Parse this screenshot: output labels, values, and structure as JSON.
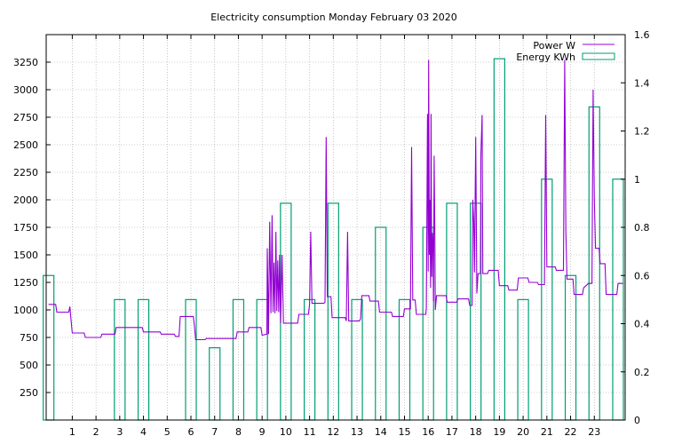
{
  "chart_data": {
    "type": "line",
    "title": "Electricity consumption Monday February 03 2020",
    "x_ticks": [
      "1",
      "2",
      "3",
      "4",
      "5",
      "6",
      "7",
      "8",
      "9",
      "10",
      "11",
      "12",
      "13",
      "14",
      "15",
      "16",
      "17",
      "18",
      "19",
      "20",
      "21",
      "22",
      "23"
    ],
    "xlim": [
      -0.1,
      24.3
    ],
    "y_left_ticks": [
      "250",
      "500",
      "750",
      "1000",
      "1250",
      "1500",
      "1750",
      "2000",
      "2250",
      "2500",
      "2750",
      "3000",
      "3250"
    ],
    "ylim_left": [
      0,
      3500
    ],
    "y_right_ticks": [
      "0",
      "0.2",
      "0.4",
      "0.6",
      "0.8",
      "1",
      "1.2",
      "1.4",
      "1.6"
    ],
    "ylim_right": [
      0,
      1.6
    ],
    "grid": true,
    "legend_position": "top-right",
    "colors": {
      "power": "#9400d3",
      "energy": "#009e73"
    },
    "series": [
      {
        "name": "Power W",
        "kind": "line",
        "points": [
          [
            0,
            1050
          ],
          [
            0.3,
            1050
          ],
          [
            0.35,
            980
          ],
          [
            0.85,
            980
          ],
          [
            0.9,
            1030
          ],
          [
            0.95,
            900
          ],
          [
            1.0,
            790
          ],
          [
            1.5,
            790
          ],
          [
            1.55,
            750
          ],
          [
            2.2,
            750
          ],
          [
            2.25,
            780
          ],
          [
            2.8,
            780
          ],
          [
            2.85,
            840
          ],
          [
            3.95,
            840
          ],
          [
            4.0,
            800
          ],
          [
            4.7,
            800
          ],
          [
            4.75,
            780
          ],
          [
            5.3,
            780
          ],
          [
            5.35,
            760
          ],
          [
            5.5,
            760
          ],
          [
            5.55,
            940
          ],
          [
            6.1,
            940
          ],
          [
            6.15,
            850
          ],
          [
            6.2,
            730
          ],
          [
            6.6,
            730
          ],
          [
            6.65,
            740
          ],
          [
            7.9,
            740
          ],
          [
            7.95,
            800
          ],
          [
            8.4,
            800
          ],
          [
            8.45,
            840
          ],
          [
            8.95,
            840
          ],
          [
            9.0,
            770
          ],
          [
            9.2,
            780
          ],
          [
            9.22,
            1560
          ],
          [
            9.27,
            780
          ],
          [
            9.32,
            1800
          ],
          [
            9.37,
            970
          ],
          [
            9.42,
            1860
          ],
          [
            9.46,
            980
          ],
          [
            9.5,
            1430
          ],
          [
            9.54,
            970
          ],
          [
            9.58,
            1710
          ],
          [
            9.62,
            990
          ],
          [
            9.66,
            1450
          ],
          [
            9.7,
            980
          ],
          [
            9.74,
            1500
          ],
          [
            9.78,
            880
          ],
          [
            9.84,
            1500
          ],
          [
            9.9,
            880
          ],
          [
            10.0,
            880
          ],
          [
            10.5,
            880
          ],
          [
            10.55,
            960
          ],
          [
            10.95,
            960
          ],
          [
            11.0,
            1050
          ],
          [
            11.05,
            1710
          ],
          [
            11.1,
            1060
          ],
          [
            11.6,
            1060
          ],
          [
            11.65,
            1070
          ],
          [
            11.7,
            2570
          ],
          [
            11.75,
            1120
          ],
          [
            11.9,
            1120
          ],
          [
            11.95,
            930
          ],
          [
            12.5,
            930
          ],
          [
            12.55,
            900
          ],
          [
            12.6,
            1710
          ],
          [
            12.65,
            900
          ],
          [
            13.1,
            900
          ],
          [
            13.15,
            920
          ],
          [
            13.2,
            1130
          ],
          [
            13.5,
            1130
          ],
          [
            13.55,
            1080
          ],
          [
            13.9,
            1080
          ],
          [
            13.95,
            980
          ],
          [
            14.45,
            980
          ],
          [
            14.5,
            940
          ],
          [
            14.95,
            940
          ],
          [
            15.0,
            1010
          ],
          [
            15.25,
            1010
          ],
          [
            15.3,
            2480
          ],
          [
            15.35,
            1090
          ],
          [
            15.45,
            1090
          ],
          [
            15.5,
            960
          ],
          [
            15.9,
            960
          ],
          [
            15.92,
            1020
          ],
          [
            15.97,
            2780
          ],
          [
            16.0,
            1350
          ],
          [
            16.02,
            3270
          ],
          [
            16.05,
            1500
          ],
          [
            16.07,
            2000
          ],
          [
            16.1,
            1200
          ],
          [
            16.12,
            2780
          ],
          [
            16.15,
            1300
          ],
          [
            16.17,
            1700
          ],
          [
            16.2,
            1600
          ],
          [
            16.22,
            1080
          ],
          [
            16.25,
            2400
          ],
          [
            16.28,
            1640
          ],
          [
            16.3,
            1000
          ],
          [
            16.35,
            1130
          ],
          [
            16.75,
            1130
          ],
          [
            16.8,
            1070
          ],
          [
            17.2,
            1070
          ],
          [
            17.25,
            1100
          ],
          [
            17.7,
            1100
          ],
          [
            17.75,
            1040
          ],
          [
            17.85,
            1040
          ],
          [
            17.88,
            2000
          ],
          [
            17.92,
            1800
          ],
          [
            17.95,
            1340
          ],
          [
            18.0,
            2570
          ],
          [
            18.05,
            1150
          ],
          [
            18.1,
            1330
          ],
          [
            18.2,
            1330
          ],
          [
            18.22,
            2400
          ],
          [
            18.27,
            2770
          ],
          [
            18.3,
            1330
          ],
          [
            18.5,
            1330
          ],
          [
            18.55,
            1360
          ],
          [
            18.95,
            1360
          ],
          [
            19.0,
            1220
          ],
          [
            19.35,
            1220
          ],
          [
            19.4,
            1180
          ],
          [
            19.75,
            1180
          ],
          [
            19.8,
            1290
          ],
          [
            20.2,
            1290
          ],
          [
            20.25,
            1250
          ],
          [
            20.6,
            1250
          ],
          [
            20.65,
            1230
          ],
          [
            20.9,
            1230
          ],
          [
            20.95,
            2770
          ],
          [
            21.0,
            1390
          ],
          [
            21.35,
            1390
          ],
          [
            21.4,
            1360
          ],
          [
            21.7,
            1360
          ],
          [
            21.75,
            3270
          ],
          [
            21.8,
            1720
          ],
          [
            21.85,
            1280
          ],
          [
            22.1,
            1280
          ],
          [
            22.15,
            1140
          ],
          [
            22.5,
            1140
          ],
          [
            22.55,
            1200
          ],
          [
            22.75,
            1240
          ],
          [
            22.9,
            1240
          ],
          [
            22.95,
            3000
          ],
          [
            23.0,
            2000
          ],
          [
            23.05,
            1560
          ],
          [
            23.2,
            1560
          ],
          [
            23.25,
            1420
          ],
          [
            23.45,
            1420
          ],
          [
            23.5,
            1140
          ],
          [
            23.95,
            1140
          ],
          [
            24.0,
            1240
          ],
          [
            24.2,
            1240
          ]
        ]
      },
      {
        "name": "Energy KWh",
        "kind": "boxes",
        "values": [
          0.6,
          0,
          0,
          0.5,
          0.5,
          0,
          0.5,
          0.3,
          0.5,
          0.5,
          0.9,
          0.5,
          0.9,
          0.5,
          0.8,
          0.5,
          0.8,
          0.9,
          0.9,
          1.5,
          0.5,
          1.0,
          0.6,
          1.3,
          1.0
        ],
        "box_center_offset": 0,
        "box_width": 0.45
      }
    ]
  }
}
